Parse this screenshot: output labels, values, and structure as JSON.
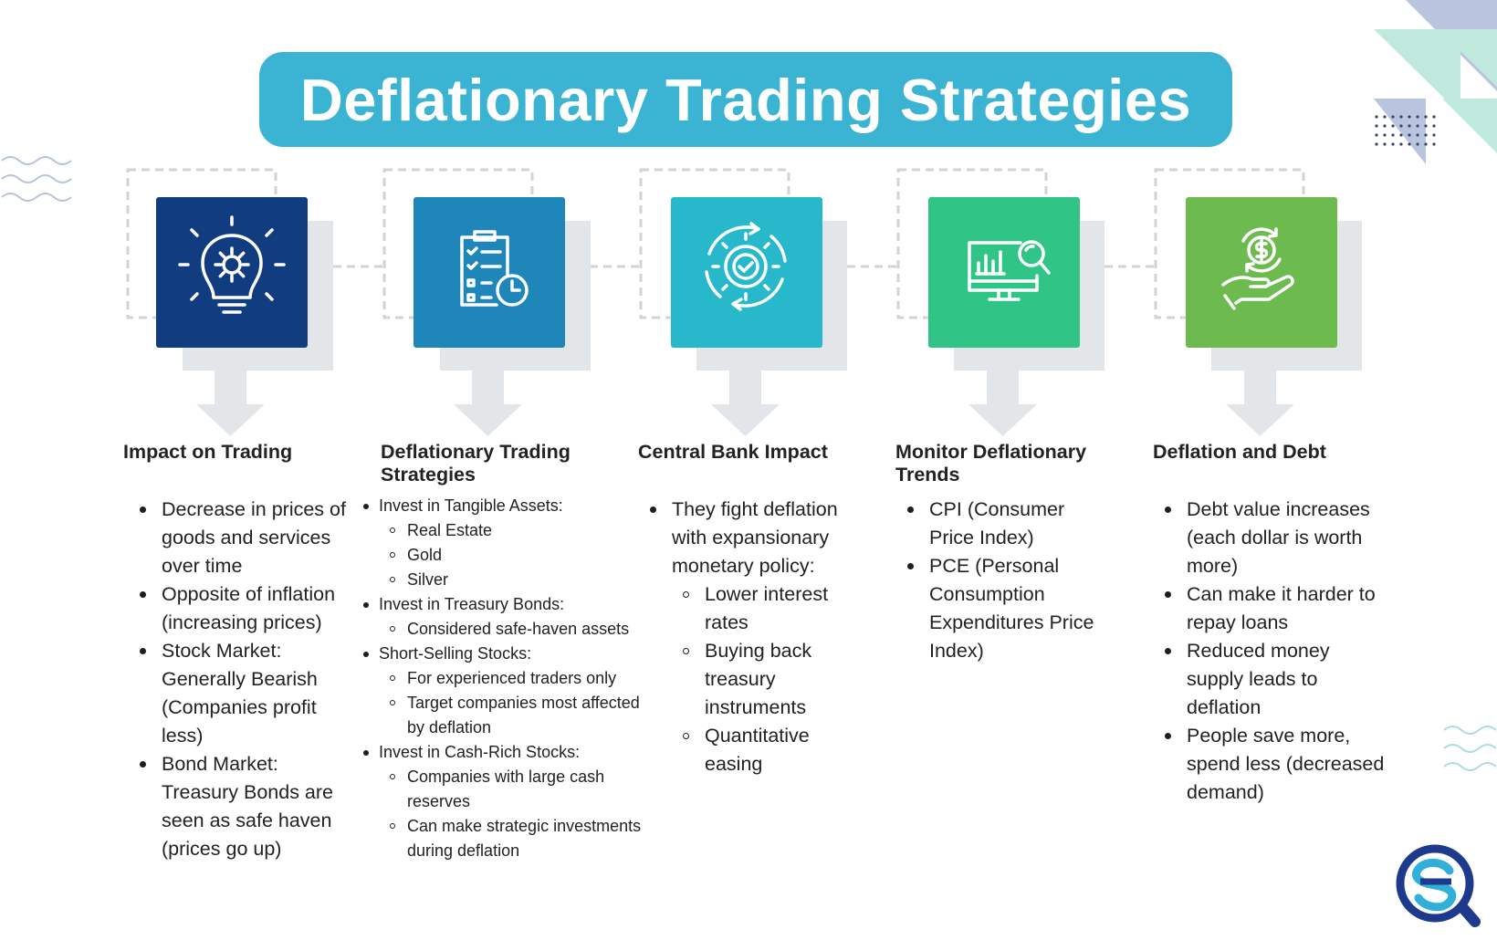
{
  "title": "Deflationary Trading Strategies",
  "colors": {
    "banner": "#3bb3d3",
    "card_1": "#113d80",
    "card_2": "#1e86b8",
    "card_3": "#27b8cc",
    "card_4": "#30c486",
    "card_5": "#6dbb4f",
    "shadow": "#e2e6e8",
    "dashed": "#d3d3d3"
  },
  "columns": [
    {
      "icon": "lightbulb-gear-icon",
      "heading": "Impact on Trading",
      "bullets": [
        {
          "text": "Decrease in prices of goods and services over time"
        },
        {
          "text": "Opposite of inflation (increasing prices)"
        },
        {
          "text": "Stock Market: Generally Bearish (Companies profit less)"
        },
        {
          "text": "Bond Market: Treasury Bonds are seen as safe haven (prices go up)"
        }
      ]
    },
    {
      "icon": "checklist-clock-icon",
      "heading": "Deflationary Trading Strategies",
      "bullets": [
        {
          "text": "Invest in Tangible Assets:",
          "sub": [
            "Real Estate",
            "Gold",
            "Silver"
          ]
        },
        {
          "text": "Invest in Treasury Bonds:",
          "sub": [
            "Considered safe-haven assets"
          ]
        },
        {
          "text": "Short-Selling Stocks:",
          "sub": [
            "For experienced traders only",
            "Target companies most affected by deflation"
          ]
        },
        {
          "text": "Invest in Cash-Rich Stocks:",
          "sub": [
            "Companies with large cash reserves",
            "Can make strategic investments during deflation"
          ]
        }
      ]
    },
    {
      "icon": "gear-refresh-check-icon",
      "heading": "Central Bank Impact",
      "bullets": [
        {
          "text": "They fight deflation with expansionary monetary policy:",
          "sub": [
            "Lower interest rates",
            "Buying back treasury instruments",
            "Quantitative easing"
          ]
        }
      ]
    },
    {
      "icon": "monitor-chart-magnifier-icon",
      "heading": "Monitor Deflationary Trends",
      "bullets": [
        {
          "text": "CPI (Consumer Price Index)"
        },
        {
          "text": "PCE (Personal Consumption Expenditures Price Index)"
        }
      ]
    },
    {
      "icon": "hand-dollar-coin-icon",
      "heading": "Deflation and Debt",
      "bullets": [
        {
          "text": "Debt value increases (each dollar is worth more)"
        },
        {
          "text": "Can make it harder to repay loans"
        },
        {
          "text": "Reduced money supply leads to deflation"
        },
        {
          "text": "People save more, spend less (decreased demand)"
        }
      ]
    }
  ]
}
